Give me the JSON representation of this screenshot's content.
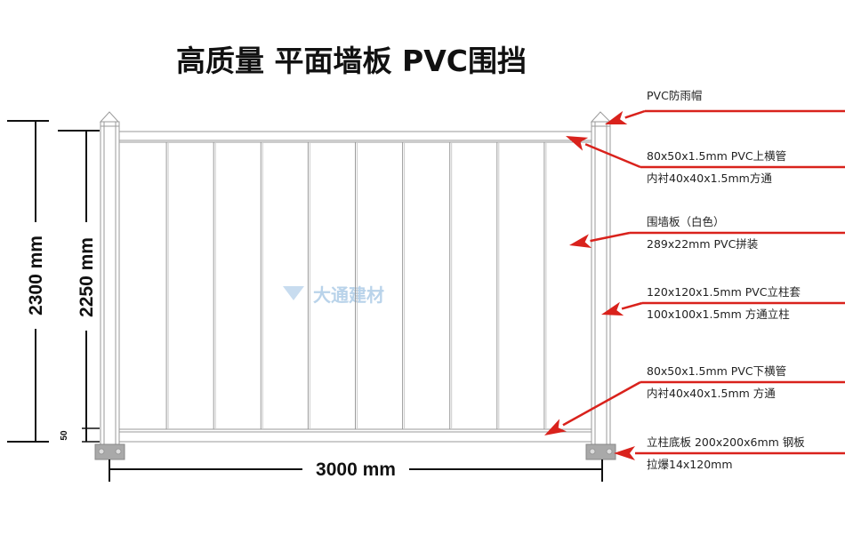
{
  "title": "高质量 平面墙板 PVC围挡",
  "watermark": "大通建材",
  "dimensions": {
    "total_height": "2300 mm",
    "panel_height": "2250 mm",
    "base_gap": "50",
    "width": "3000 mm"
  },
  "colors": {
    "callout": "#d9221c",
    "watermark": "#b9d3ea",
    "base_plate": "#a9a9a9"
  },
  "callouts": [
    {
      "line1": "PVC防雨帽",
      "line2": ""
    },
    {
      "line1": "80x50x1.5mm PVC上横管",
      "line2": "内衬40x40x1.5mm方通"
    },
    {
      "line1": "围墙板（白色）",
      "line2": "289x22mm PVC拼装"
    },
    {
      "line1": "120x120x1.5mm PVC立柱套",
      "line2": "100x100x1.5mm 方通立柱"
    },
    {
      "line1": "80x50x1.5mm PVC下横管",
      "line2": "内衬40x40x1.5mm 方通"
    },
    {
      "line1": "立柱底板 200x200x6mm 钢板",
      "line2": "拉爆14x120mm"
    }
  ]
}
